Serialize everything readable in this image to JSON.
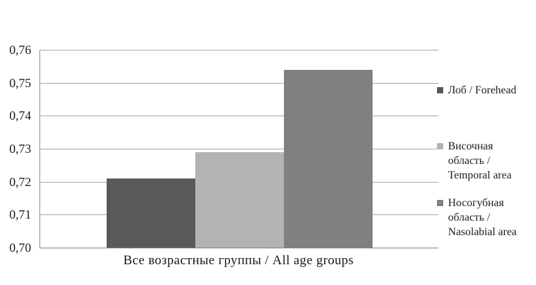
{
  "figure": {
    "background": "#ffffff",
    "text_color": "#1b1b1b",
    "gridline_color": "#a6a6a6",
    "axis_color": "#7f7f7f"
  },
  "chart_data": {
    "type": "bar",
    "title": "",
    "categories": [
      "Все возрастные группы / All age groups"
    ],
    "series": [
      {
        "name": "Лоб / Forehead",
        "values": [
          0.721
        ],
        "color": "#595959"
      },
      {
        "name": "Височная область / Temporal area",
        "values": [
          0.729
        ],
        "color": "#b3b3b3"
      },
      {
        "name": "Носогубная область / Nasolabial area",
        "values": [
          0.754
        ],
        "color": "#808080"
      }
    ],
    "xlabel": "Все возрастные группы / All age groups",
    "ylabel": "",
    "ylim": [
      0.7,
      0.76
    ],
    "ytick_step": 0.01,
    "ytick_labels": [
      "0,70",
      "0,71",
      "0,72",
      "0,73",
      "0,74",
      "0,75",
      "0,76"
    ],
    "decimal_separator": ",",
    "grid": true,
    "legend_position": "right"
  }
}
